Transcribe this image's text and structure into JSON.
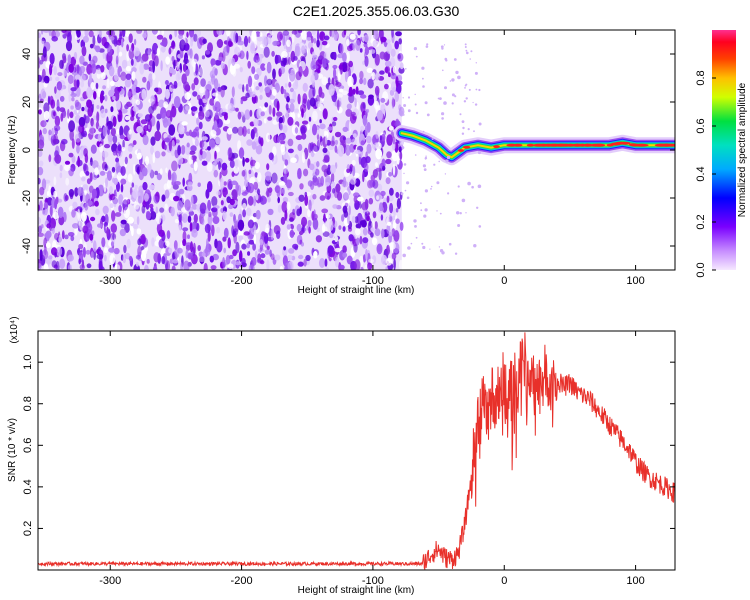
{
  "figure": {
    "title": "C2E1.2025.355.06.03.G30"
  },
  "chart_data": [
    {
      "type": "heatmap",
      "title": "",
      "xlabel": "Height of straight line (km)",
      "ylabel": "Frequency (Hz)",
      "xlim": [
        -355,
        130
      ],
      "ylim": [
        -50,
        50
      ],
      "x_ticks": [
        -300,
        -200,
        -100,
        0,
        100
      ],
      "y_ticks": [
        -40,
        -20,
        0,
        20,
        40
      ],
      "noise_region_x": [
        -355,
        -78
      ],
      "signal_track": {
        "x": [
          -78,
          -70,
          -60,
          -50,
          -44,
          -40,
          -35,
          -30,
          -20,
          -10,
          0,
          10,
          20,
          40,
          60,
          80,
          90,
          100,
          110,
          130
        ],
        "frequency": [
          7,
          6,
          4,
          1,
          -2,
          -3,
          -1,
          1,
          2,
          1,
          2,
          2,
          2,
          2,
          2,
          2,
          3,
          2,
          2,
          2
        ]
      },
      "colorbar": {
        "label": "Normalized spectral amplitude",
        "range": [
          0,
          1
        ],
        "ticks": [
          "0.0",
          "0.2",
          "0.4",
          "0.6",
          "0.8"
        ],
        "colors": [
          "#ffffff",
          "#e9c9ff",
          "#8a2be2",
          "#0000ff",
          "#00d0ff",
          "#00e060",
          "#ffff00",
          "#ff8000",
          "#ff0000",
          "#ff2080"
        ]
      }
    },
    {
      "type": "line",
      "title": "",
      "xlabel": "Height of straight line (km)",
      "ylabel": "SNR (10 * v/v)",
      "y_scale_label": "(x10⁴)",
      "xlim": [
        -355,
        130
      ],
      "ylim": [
        0,
        1.15
      ],
      "x_ticks": [
        -300,
        -200,
        -100,
        0,
        100
      ],
      "y_ticks": [
        "0.2",
        "0.4",
        "0.6",
        "0.8",
        "1.0"
      ],
      "color": "#e8302a",
      "x": [
        -355,
        -300,
        -200,
        -100,
        -62,
        -55,
        -50,
        -45,
        -40,
        -35,
        -30,
        -25,
        -20,
        -15,
        -10,
        -5,
        0,
        5,
        10,
        15,
        20,
        25,
        30,
        35,
        40,
        45,
        50,
        55,
        60,
        65,
        70,
        75,
        80,
        85,
        90,
        95,
        100,
        105,
        110,
        115,
        120,
        125,
        130
      ],
      "y": [
        0.03,
        0.03,
        0.03,
        0.03,
        0.03,
        0.08,
        0.1,
        0.06,
        0.05,
        0.08,
        0.22,
        0.45,
        0.7,
        0.8,
        0.82,
        0.85,
        0.9,
        0.85,
        0.92,
        1.0,
        0.93,
        0.9,
        0.92,
        0.95,
        0.92,
        0.88,
        0.9,
        0.86,
        0.84,
        0.82,
        0.78,
        0.74,
        0.7,
        0.66,
        0.62,
        0.58,
        0.52,
        0.48,
        0.45,
        0.43,
        0.41,
        0.39,
        0.37
      ]
    }
  ]
}
